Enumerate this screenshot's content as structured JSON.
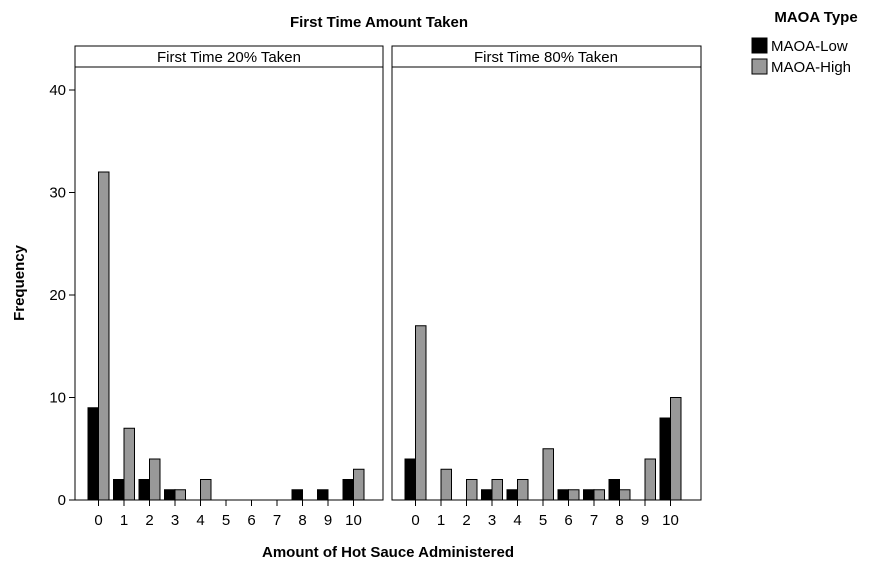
{
  "chart_data": {
    "type": "bar",
    "title": "First Time Amount Taken",
    "xlabel": "Amount of Hot Sauce Administered",
    "ylabel": "Frequency",
    "ylim": [
      0,
      42
    ],
    "yticks": [
      0,
      10,
      20,
      30,
      40
    ],
    "categories": [
      "0",
      "1",
      "2",
      "3",
      "4",
      "5",
      "6",
      "7",
      "8",
      "9",
      "10"
    ],
    "legend": {
      "title": "MAOA Type",
      "placement": "top-right",
      "entries": [
        {
          "name": "MAOA-Low",
          "color": "#000000"
        },
        {
          "name": "MAOA-High",
          "color": "#999999"
        }
      ]
    },
    "panels": [
      {
        "title": "First Time 20% Taken",
        "series": [
          {
            "name": "MAOA-Low",
            "values": [
              9,
              2,
              2,
              1,
              0,
              0,
              0,
              0,
              1,
              1,
              2
            ]
          },
          {
            "name": "MAOA-High",
            "values": [
              32,
              7,
              4,
              1,
              2,
              0,
              0,
              0,
              0,
              0,
              3
            ]
          }
        ]
      },
      {
        "title": "First Time 80% Taken",
        "series": [
          {
            "name": "MAOA-Low",
            "values": [
              4,
              0,
              0,
              1,
              1,
              0,
              1,
              1,
              2,
              0,
              8
            ]
          },
          {
            "name": "MAOA-High",
            "values": [
              17,
              3,
              2,
              2,
              2,
              5,
              1,
              1,
              1,
              4,
              10
            ]
          }
        ]
      }
    ],
    "grid": false
  }
}
